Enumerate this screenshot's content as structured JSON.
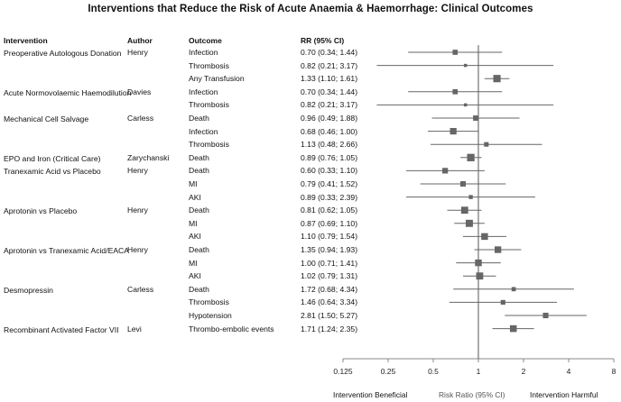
{
  "title": "Interventions that Reduce the Risk of Acute Anaemia & Haemorrhage: Clinical Outcomes",
  "headers": {
    "intervention": "Intervention",
    "author": "Author",
    "outcome": "Outcome",
    "rr": "RR (95% CI)"
  },
  "chart_data": {
    "type": "forest",
    "title": "Interventions that Reduce the Risk of Acute Anaemia & Haemorrhage: Clinical Outcomes",
    "xlabel": "Risk Ratio (95% CI)",
    "x_scale": "log2",
    "xlim": [
      0.125,
      8
    ],
    "ticks": [
      "0.125",
      "0.25",
      "0.5",
      "1",
      "2",
      "4",
      "8"
    ],
    "left_label": "Intervention Beneficial",
    "right_label": "Intervention Harmful",
    "reference_line": 1,
    "groups": [
      {
        "intervention": "Preoperative Autologous Donation",
        "author": "Henry",
        "rows": [
          {
            "outcome": "Infection",
            "rr_text": "0.70 (0.34; 1.44)",
            "rr": 0.7,
            "lo": 0.34,
            "hi": 1.44
          },
          {
            "outcome": "Thrombosis",
            "rr_text": "0.82 (0.21; 3.17)",
            "rr": 0.82,
            "lo": 0.21,
            "hi": 3.17
          },
          {
            "outcome": "Any Transfusion",
            "rr_text": "1.33 (1.10; 1.61)",
            "rr": 1.33,
            "lo": 1.1,
            "hi": 1.61
          }
        ]
      },
      {
        "intervention": "Acute Normovolaemic Haemodilution",
        "author": "Davies",
        "rows": [
          {
            "outcome": "Infection",
            "rr_text": "0.70 (0.34; 1.44)",
            "rr": 0.7,
            "lo": 0.34,
            "hi": 1.44
          },
          {
            "outcome": "Thrombosis",
            "rr_text": "0.82 (0.21; 3.17)",
            "rr": 0.82,
            "lo": 0.21,
            "hi": 3.17
          }
        ]
      },
      {
        "intervention": "Mechanical Cell Salvage",
        "author": "Carless",
        "rows": [
          {
            "outcome": "Death",
            "rr_text": "0.96 (0.49; 1.88)",
            "rr": 0.96,
            "lo": 0.49,
            "hi": 1.88
          },
          {
            "outcome": "Infection",
            "rr_text": "0.68 (0.46; 1.00)",
            "rr": 0.68,
            "lo": 0.46,
            "hi": 1.0
          },
          {
            "outcome": "Thrombosis",
            "rr_text": "1.13 (0.48; 2.66)",
            "rr": 1.13,
            "lo": 0.48,
            "hi": 2.66
          }
        ]
      },
      {
        "intervention": "EPO and Iron (Critical Care)",
        "author": "Zarychanski",
        "rows": [
          {
            "outcome": "Death",
            "rr_text": "0.89 (0.76; 1.05)",
            "rr": 0.89,
            "lo": 0.76,
            "hi": 1.05
          }
        ]
      },
      {
        "intervention": "Tranexamic Acid vs Placebo",
        "author": "Henry",
        "rows": [
          {
            "outcome": "Death",
            "rr_text": "0.60 (0.33; 1.10)",
            "rr": 0.6,
            "lo": 0.33,
            "hi": 1.1
          },
          {
            "outcome": "MI",
            "rr_text": "0.79 (0.41; 1.52)",
            "rr": 0.79,
            "lo": 0.41,
            "hi": 1.52
          },
          {
            "outcome": "AKI",
            "rr_text": "0.89 (0.33; 2.39)",
            "rr": 0.89,
            "lo": 0.33,
            "hi": 2.39
          }
        ]
      },
      {
        "intervention": "Aprotonin vs Placebo",
        "author": "Henry",
        "rows": [
          {
            "outcome": "Death",
            "rr_text": "0.81 (0.62; 1.05)",
            "rr": 0.81,
            "lo": 0.62,
            "hi": 1.05
          },
          {
            "outcome": "MI",
            "rr_text": "0.87 (0.69; 1.10)",
            "rr": 0.87,
            "lo": 0.69,
            "hi": 1.1
          },
          {
            "outcome": "AKI",
            "rr_text": "1.10 (0.79; 1.54)",
            "rr": 1.1,
            "lo": 0.79,
            "hi": 1.54
          }
        ]
      },
      {
        "intervention": "Aprotonin vs Tranexamic Acid/EACA",
        "author": "Henry",
        "rows": [
          {
            "outcome": "Death",
            "rr_text": "1.35 (0.94; 1.93)",
            "rr": 1.35,
            "lo": 0.94,
            "hi": 1.93
          },
          {
            "outcome": "MI",
            "rr_text": "1.00 (0.71; 1.41)",
            "rr": 1.0,
            "lo": 0.71,
            "hi": 1.41
          },
          {
            "outcome": "AKI",
            "rr_text": "1.02 (0.79; 1.31)",
            "rr": 1.02,
            "lo": 0.79,
            "hi": 1.31
          }
        ]
      },
      {
        "intervention": "Desmopressin",
        "author": "Carless",
        "rows": [
          {
            "outcome": "Death",
            "rr_text": "1.72 (0.68; 4.34)",
            "rr": 1.72,
            "lo": 0.68,
            "hi": 4.34
          },
          {
            "outcome": "Thrombosis",
            "rr_text": "1.46 (0.64; 3.34)",
            "rr": 1.46,
            "lo": 0.64,
            "hi": 3.34
          },
          {
            "outcome": "Hypotension",
            "rr_text": "2.81 (1.50; 5.27)",
            "rr": 2.81,
            "lo": 1.5,
            "hi": 5.27
          }
        ]
      },
      {
        "intervention": "Recombinant Activated Factor VII",
        "author": "Levi",
        "rows": [
          {
            "outcome": "Thrombo-embolic events",
            "rr_text": "1.71 (1.24; 2.35)",
            "rr": 1.71,
            "lo": 1.24,
            "hi": 2.35
          }
        ]
      }
    ]
  }
}
